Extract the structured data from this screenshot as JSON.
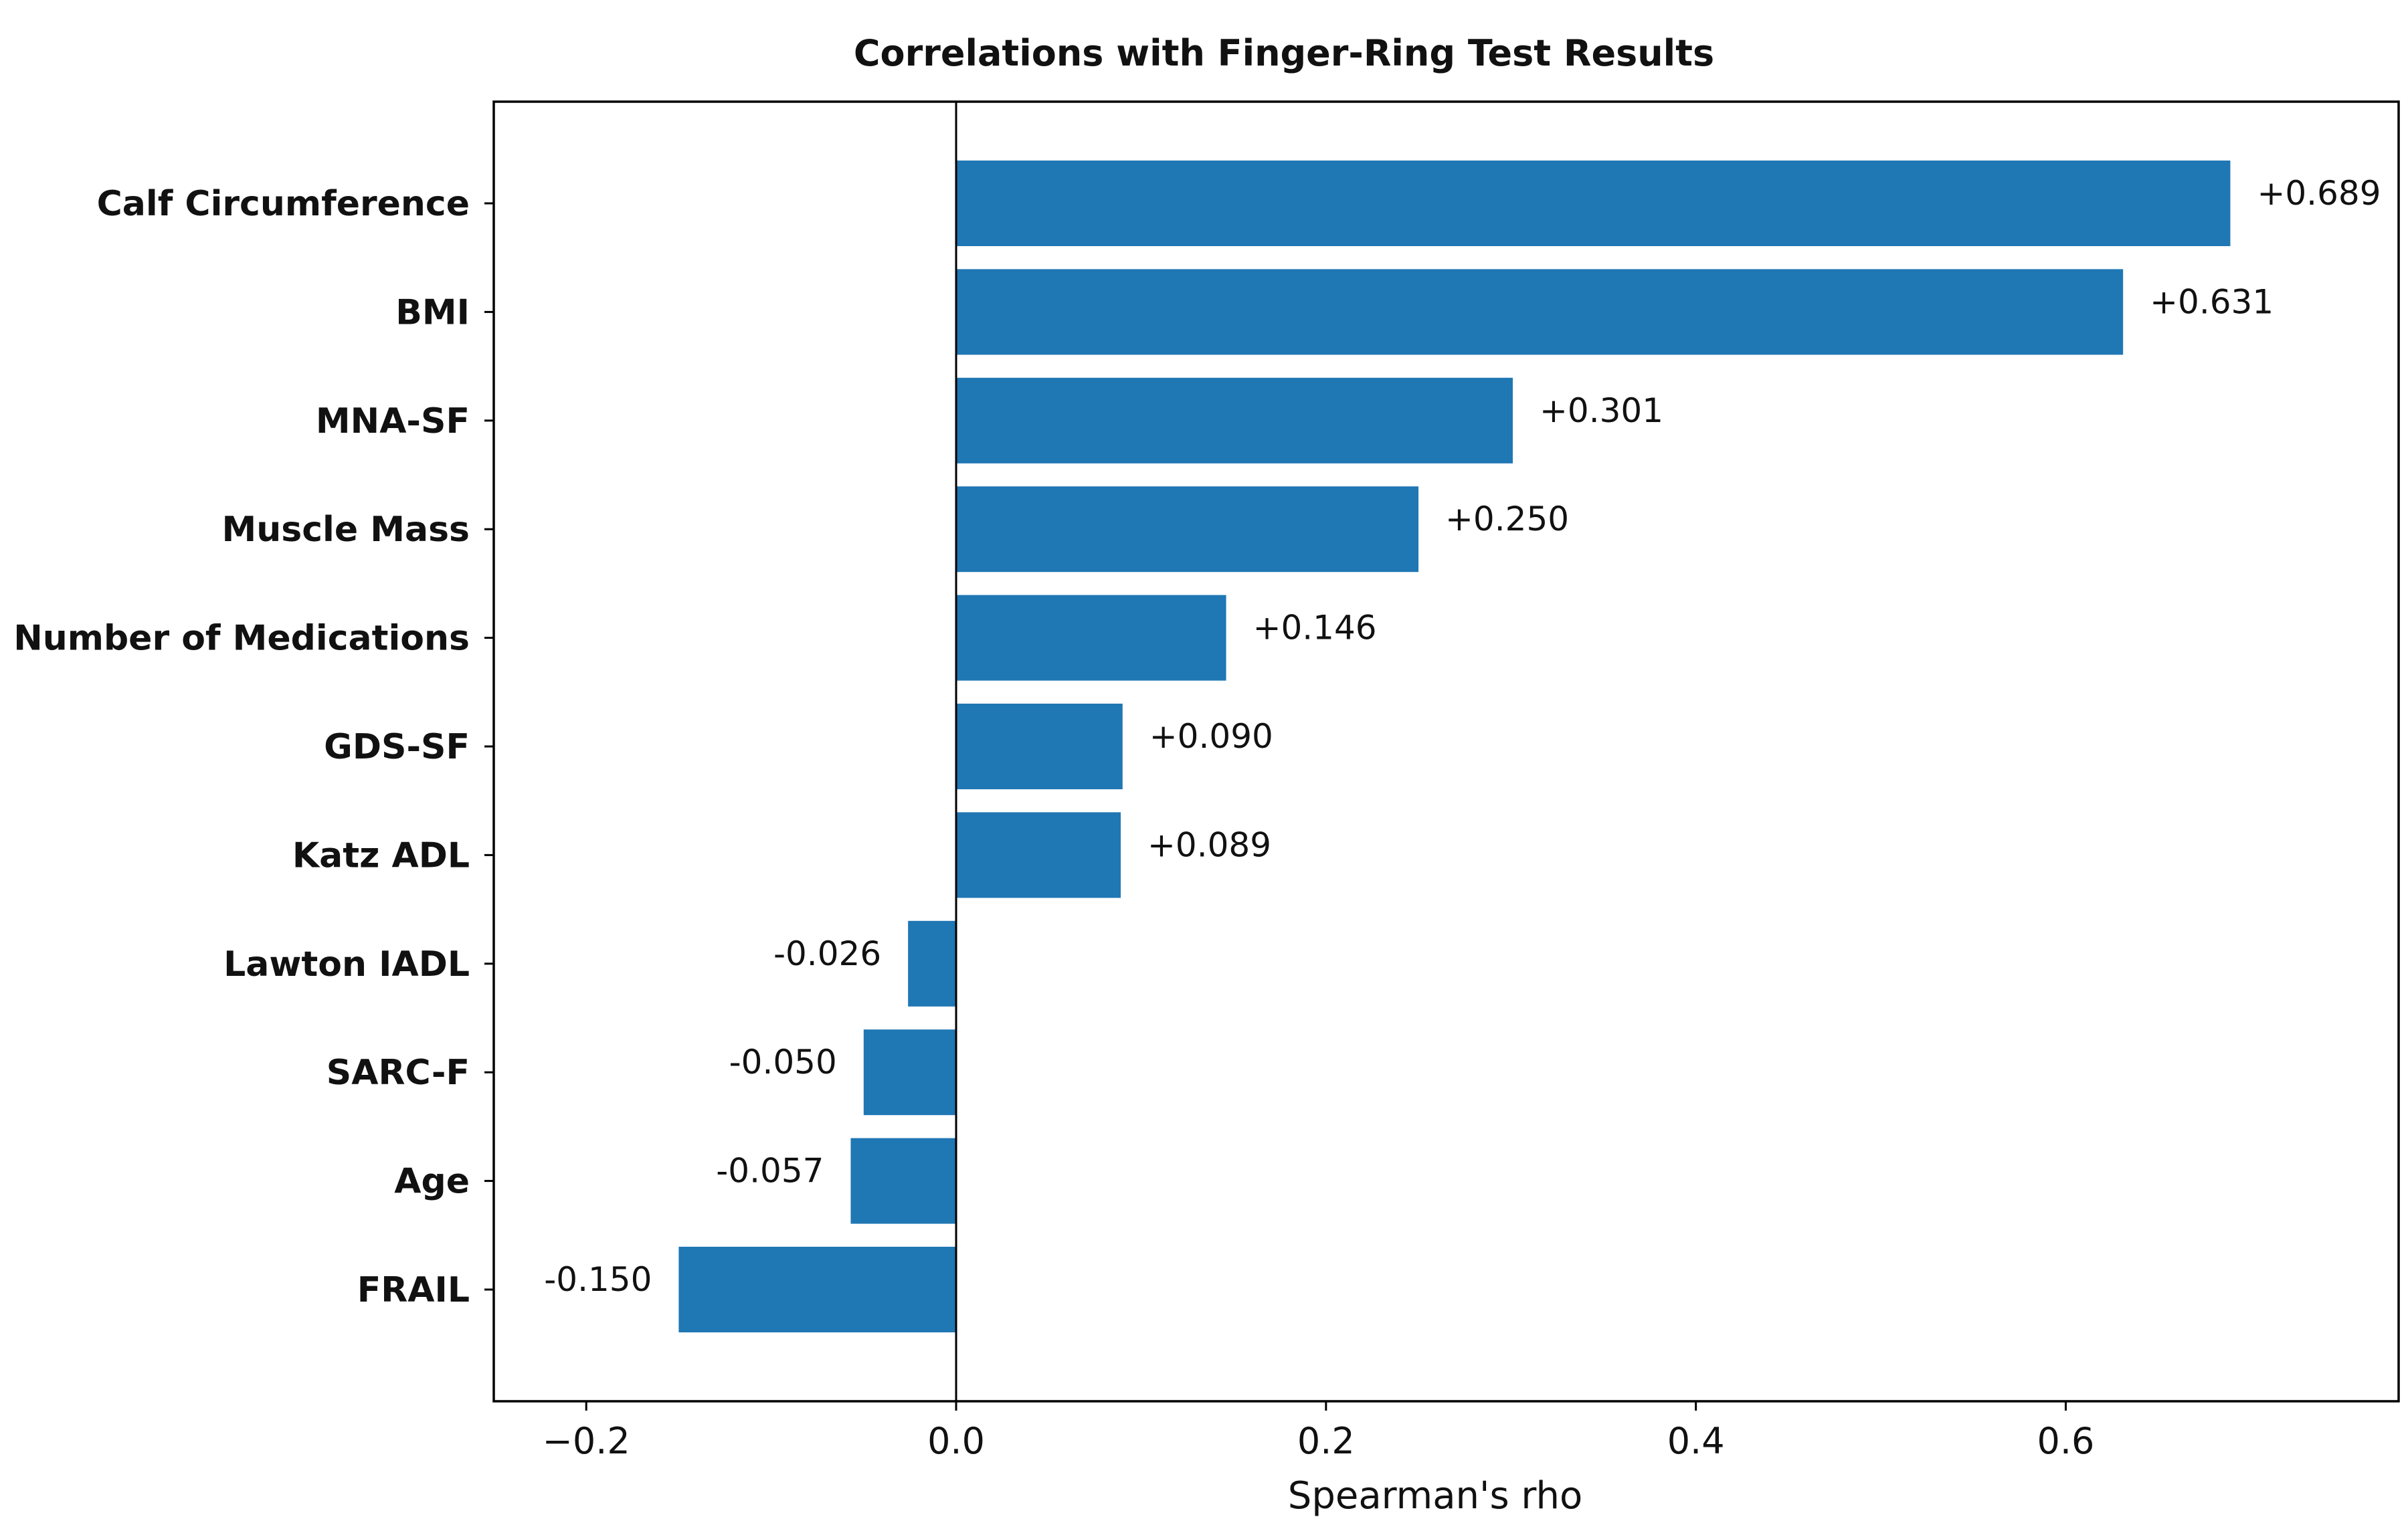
{
  "chart_data": {
    "type": "bar",
    "orientation": "horizontal",
    "title": "Correlations with Finger-Ring Test Results",
    "xlabel": "Spearman's rho",
    "ylabel": "",
    "xlim": [
      -0.25,
      0.78
    ],
    "xticks": [
      -0.2,
      0.0,
      0.2,
      0.4,
      0.6
    ],
    "xtick_labels": [
      "−0.2",
      "0.0",
      "0.2",
      "0.4",
      "0.6"
    ],
    "categories": [
      "Calf Circumference",
      "BMI",
      "MNA-SF",
      "Muscle Mass",
      "Number of Medications",
      "GDS-SF",
      "Katz ADL",
      "Lawton IADL",
      "SARC-F",
      "Age",
      "FRAIL"
    ],
    "values": [
      0.689,
      0.631,
      0.301,
      0.25,
      0.146,
      0.09,
      0.089,
      -0.026,
      -0.05,
      -0.057,
      -0.15
    ],
    "value_labels": [
      "+0.689",
      "+0.631",
      "+0.301",
      "+0.250",
      "+0.146",
      "+0.090",
      "+0.089",
      "-0.026",
      "-0.050",
      "-0.057",
      "-0.150"
    ],
    "bar_color": "#1f77b4",
    "zero_line": true,
    "grid": false,
    "legend": "none"
  }
}
